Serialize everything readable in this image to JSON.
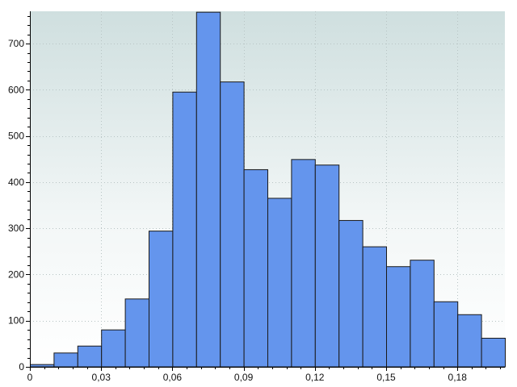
{
  "chart_data": {
    "type": "histogram",
    "title": "",
    "xlabel": "",
    "ylabel": "",
    "xlim": [
      0,
      0.2
    ],
    "ylim": [
      0,
      770
    ],
    "x_ticks": [
      0,
      0.03,
      0.06,
      0.09,
      0.12,
      0.15,
      0.18
    ],
    "x_tick_labels": [
      "0",
      "0,03",
      "0,06",
      "0,09",
      "0,12",
      "0,15",
      "0,18"
    ],
    "y_ticks": [
      0,
      100,
      200,
      300,
      400,
      500,
      600,
      700
    ],
    "y_tick_labels": [
      "0",
      "100",
      "200",
      "300",
      "400",
      "500",
      "600",
      "700"
    ],
    "bin_edges": [
      0,
      0.01,
      0.02,
      0.03,
      0.04,
      0.05,
      0.06,
      0.07,
      0.08,
      0.09,
      0.1,
      0.11,
      0.12,
      0.13,
      0.14,
      0.15,
      0.16,
      0.17,
      0.18,
      0.19,
      0.2
    ],
    "values": [
      5,
      30,
      45,
      80,
      147,
      294,
      595,
      768,
      617,
      427,
      365,
      449,
      437,
      317,
      260,
      217,
      231,
      141,
      113,
      62
    ],
    "grid": true,
    "colors": {
      "bar_fill": "#6495ed",
      "bar_edge": "#1a1a1a",
      "background_top": "#cfdfdf",
      "background_bottom": "#ffffff"
    }
  }
}
